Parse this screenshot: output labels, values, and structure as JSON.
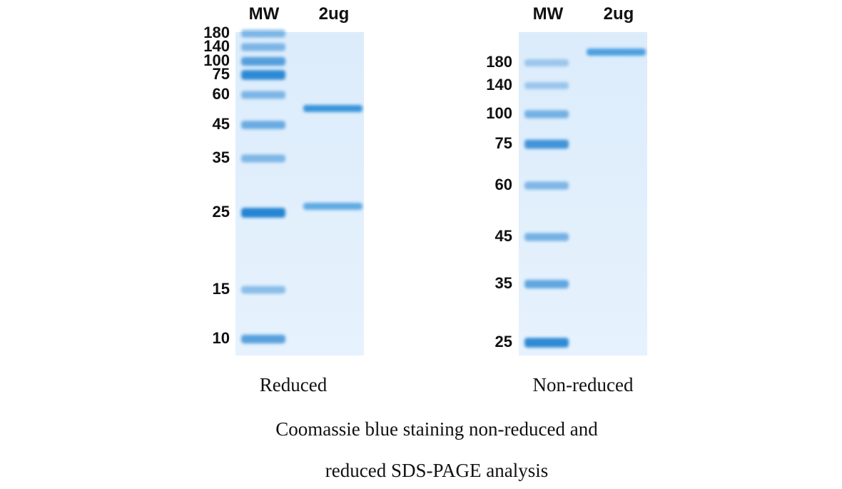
{
  "panels": [
    {
      "lanes": [
        "MW",
        "2ug"
      ],
      "markers": [
        "180",
        "140",
        "100",
        "75",
        "60",
        "45",
        "35",
        "25",
        "15",
        "10"
      ],
      "label": "Reduced"
    },
    {
      "lanes": [
        "MW",
        "2ug"
      ],
      "markers": [
        "180",
        "140",
        "100",
        "75",
        "60",
        "45",
        "35",
        "25"
      ],
      "label": "Non-reduced"
    }
  ],
  "caption": {
    "lines": [
      "Coomassie blue staining non-reduced and",
      "reduced SDS-PAGE analysis"
    ]
  }
}
